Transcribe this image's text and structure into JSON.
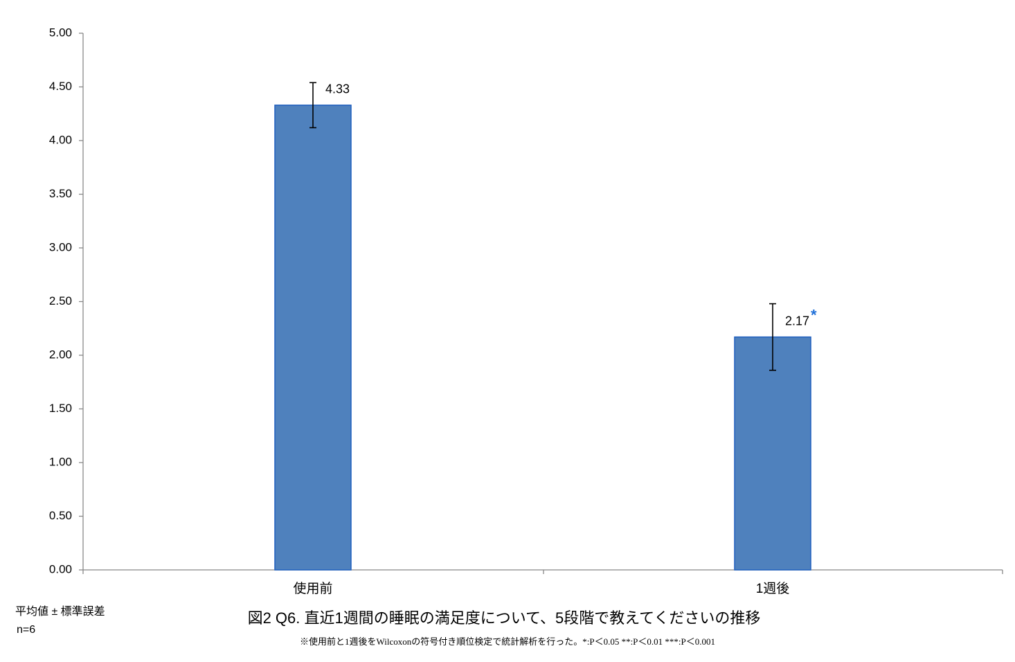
{
  "chart_data": {
    "type": "bar",
    "title": "図2  Q6. 直近1週間の睡眠の満足度について、5段階で教えてくださいの推移",
    "footnote": "※使用前と1週後をWilcoxonの符号付き順位検定で統計解析を行った。*:P＜0.05  **:P＜0.01  ***:P＜0.001",
    "notes": [
      "平均値 ± 標準誤差",
      "n=6"
    ],
    "categories": [
      "使用前",
      "1週後"
    ],
    "values": [
      4.33,
      2.17
    ],
    "errors": [
      0.21,
      0.31
    ],
    "color": "#4f81bd",
    "edge_color": "#1f5fbf",
    "annotations": [
      {
        "text": "*",
        "category_index": 1,
        "color": "#1f6fd8"
      }
    ],
    "ylim": [
      0,
      5
    ],
    "yticks": [
      {
        "value": 0,
        "label": "0.00"
      },
      {
        "value": 0.5,
        "label": "0.50"
      },
      {
        "value": 1,
        "label": "1.00"
      },
      {
        "value": 1.5,
        "label": "1.50"
      },
      {
        "value": 2,
        "label": "2.00"
      },
      {
        "value": 2.5,
        "label": "2.50"
      },
      {
        "value": 3,
        "label": "3.00"
      },
      {
        "value": 3.5,
        "label": "3.50"
      },
      {
        "value": 4,
        "label": "4.00"
      },
      {
        "value": 4.5,
        "label": "4.50"
      },
      {
        "value": 5,
        "label": "5.00"
      }
    ],
    "grid": false
  }
}
